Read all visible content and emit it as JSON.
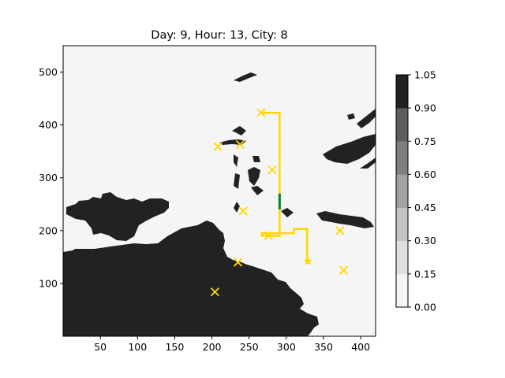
{
  "chart_data": {
    "type": "contour_map",
    "title": "Day: 9, Hour: 13, City: 8",
    "xlim": [
      0,
      420
    ],
    "ylim": [
      0,
      550
    ],
    "x_ticks": [
      50,
      100,
      150,
      200,
      250,
      300,
      350,
      400
    ],
    "y_ticks": [
      100,
      200,
      300,
      400,
      500
    ],
    "colorbar": {
      "levels": [
        "0.00",
        "0.15",
        "0.30",
        "0.45",
        "0.60",
        "0.75",
        "0.90",
        "1.05"
      ],
      "colors": [
        "#f5f5f5",
        "#e0e0e0",
        "#c4c4c4",
        "#a2a2a2",
        "#7f7f7f",
        "#5e5e5e",
        "#222222"
      ]
    },
    "cities": [
      {
        "x": 266,
        "y": 423
      },
      {
        "x": 208,
        "y": 359
      },
      {
        "x": 238,
        "y": 363
      },
      {
        "x": 281,
        "y": 315
      },
      {
        "x": 242,
        "y": 237
      },
      {
        "x": 276,
        "y": 190
      },
      {
        "x": 372,
        "y": 200
      },
      {
        "x": 235,
        "y": 140
      },
      {
        "x": 377,
        "y": 125
      },
      {
        "x": 204,
        "y": 84
      }
    ],
    "target_city": {
      "x": 329,
      "y": 142
    },
    "route": [
      [
        266,
        423
      ],
      [
        291,
        423
      ],
      [
        291,
        190
      ],
      [
        267,
        190
      ],
      [
        267,
        195
      ],
      [
        310,
        195
      ],
      [
        310,
        203
      ],
      [
        328,
        203
      ],
      [
        328,
        142
      ]
    ],
    "current_segment": [
      [
        291,
        270
      ],
      [
        291,
        240
      ]
    ],
    "colors": {
      "route": "#ffd700",
      "marker": "#ffd700",
      "current": "#0a7f2e",
      "land": "#222222",
      "sea": "#f5f5f5"
    }
  }
}
